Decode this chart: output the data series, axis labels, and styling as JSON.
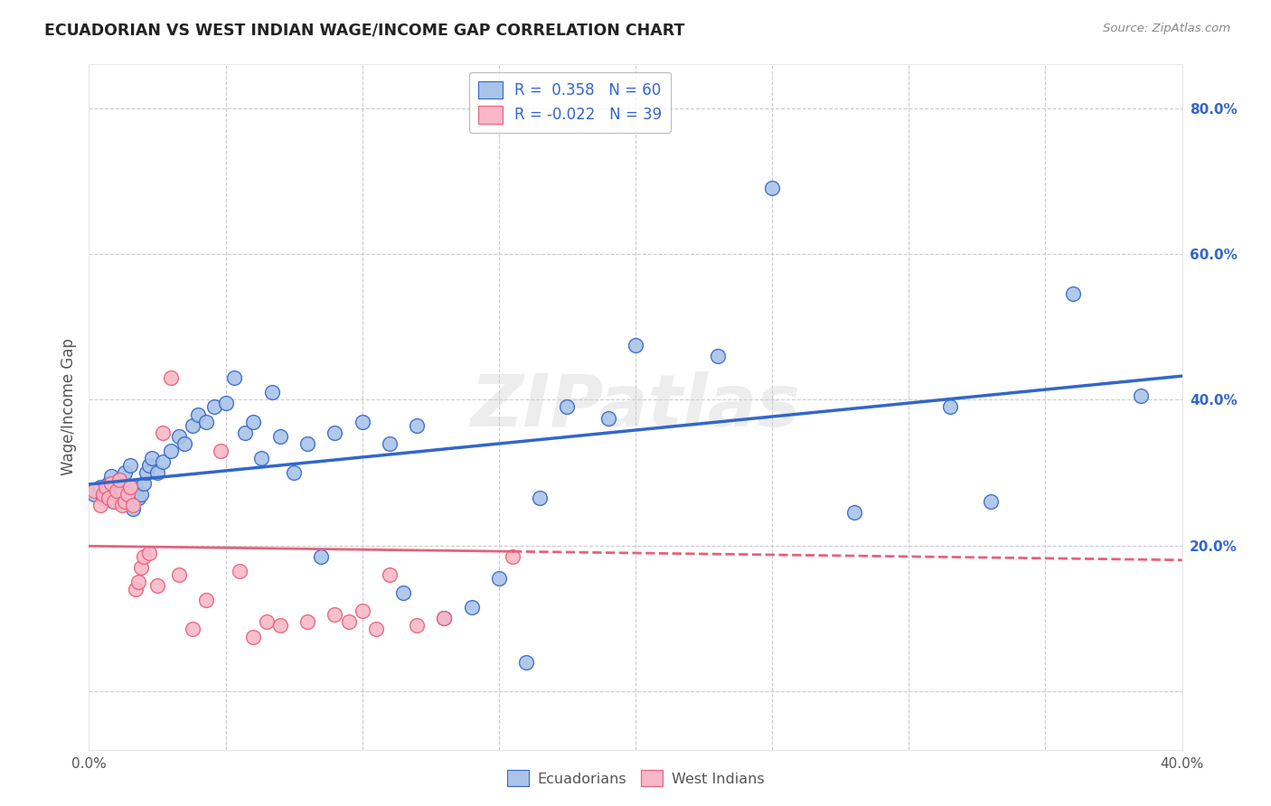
{
  "title": "ECUADORIAN VS WEST INDIAN WAGE/INCOME GAP CORRELATION CHART",
  "source": "Source: ZipAtlas.com",
  "ylabel": "Wage/Income Gap",
  "xlim": [
    0.0,
    0.4
  ],
  "ylim": [
    -0.08,
    0.86
  ],
  "ytick_positions": [
    0.0,
    0.2,
    0.4,
    0.6,
    0.8
  ],
  "ytick_labels": [
    "",
    "20.0%",
    "40.0%",
    "60.0%",
    "80.0%"
  ],
  "blue_R": 0.358,
  "blue_N": 60,
  "pink_R": -0.022,
  "pink_N": 39,
  "blue_color": "#aac4e8",
  "pink_color": "#f8b8c8",
  "line_blue": "#3366cc",
  "line_pink": "#e8607a",
  "grid_color": "#cccccc",
  "bg_color": "#ffffff",
  "watermark": "ZIPatlas",
  "blue_scatter_x": [
    0.002,
    0.004,
    0.005,
    0.006,
    0.007,
    0.008,
    0.009,
    0.01,
    0.011,
    0.012,
    0.013,
    0.014,
    0.015,
    0.016,
    0.017,
    0.018,
    0.019,
    0.02,
    0.021,
    0.022,
    0.023,
    0.025,
    0.027,
    0.03,
    0.033,
    0.035,
    0.038,
    0.04,
    0.043,
    0.046,
    0.05,
    0.053,
    0.057,
    0.06,
    0.063,
    0.067,
    0.07,
    0.075,
    0.08,
    0.085,
    0.09,
    0.1,
    0.11,
    0.115,
    0.12,
    0.13,
    0.14,
    0.15,
    0.16,
    0.165,
    0.175,
    0.19,
    0.2,
    0.23,
    0.25,
    0.28,
    0.315,
    0.33,
    0.36,
    0.385
  ],
  "blue_scatter_y": [
    0.27,
    0.28,
    0.265,
    0.275,
    0.285,
    0.295,
    0.26,
    0.27,
    0.29,
    0.275,
    0.3,
    0.265,
    0.31,
    0.25,
    0.28,
    0.265,
    0.27,
    0.285,
    0.3,
    0.31,
    0.32,
    0.3,
    0.315,
    0.33,
    0.35,
    0.34,
    0.365,
    0.38,
    0.37,
    0.39,
    0.395,
    0.43,
    0.355,
    0.37,
    0.32,
    0.41,
    0.35,
    0.3,
    0.34,
    0.185,
    0.355,
    0.37,
    0.34,
    0.135,
    0.365,
    0.1,
    0.115,
    0.155,
    0.04,
    0.265,
    0.39,
    0.375,
    0.475,
    0.46,
    0.69,
    0.245,
    0.39,
    0.26,
    0.545,
    0.405
  ],
  "pink_scatter_x": [
    0.002,
    0.004,
    0.005,
    0.006,
    0.007,
    0.008,
    0.009,
    0.01,
    0.011,
    0.012,
    0.013,
    0.014,
    0.015,
    0.016,
    0.017,
    0.018,
    0.019,
    0.02,
    0.022,
    0.025,
    0.027,
    0.03,
    0.033,
    0.038,
    0.043,
    0.048,
    0.055,
    0.06,
    0.065,
    0.07,
    0.08,
    0.09,
    0.095,
    0.1,
    0.105,
    0.11,
    0.12,
    0.13,
    0.155
  ],
  "pink_scatter_y": [
    0.275,
    0.255,
    0.27,
    0.28,
    0.265,
    0.285,
    0.26,
    0.275,
    0.29,
    0.255,
    0.26,
    0.27,
    0.28,
    0.255,
    0.14,
    0.15,
    0.17,
    0.185,
    0.19,
    0.145,
    0.355,
    0.43,
    0.16,
    0.085,
    0.125,
    0.33,
    0.165,
    0.075,
    0.095,
    0.09,
    0.095,
    0.105,
    0.095,
    0.11,
    0.085,
    0.16,
    0.09,
    0.1,
    0.185
  ],
  "legend_box_color": "#ffffff",
  "legend_edge_color": "#aaaaaa"
}
